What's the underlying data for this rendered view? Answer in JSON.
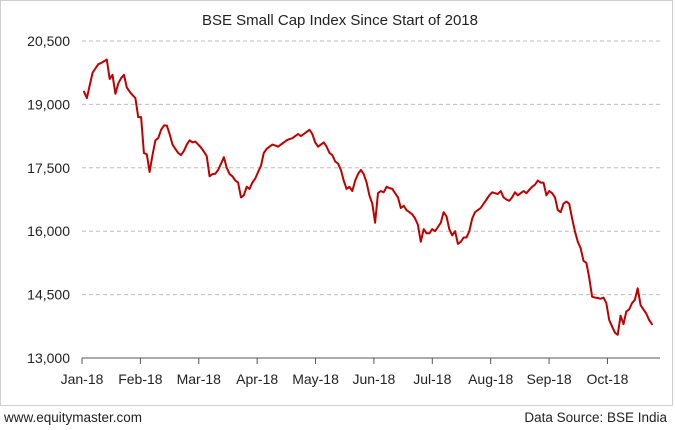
{
  "chart_data": {
    "type": "line",
    "title": "BSE Small Cap Index Since Start of 2018",
    "xlabel": "",
    "ylabel": "",
    "x_tick_labels": [
      "Jan-18",
      "Feb-18",
      "Mar-18",
      "Apr-18",
      "May-18",
      "Jun-18",
      "Jul-18",
      "Aug-18",
      "Sep-18",
      "Oct-18"
    ],
    "y_ticks": [
      13000,
      14500,
      16000,
      17500,
      19000,
      20500
    ],
    "y_tick_labels": [
      "13,000",
      "14,500",
      "16,000",
      "17,500",
      "19,000",
      "20,500"
    ],
    "ylim": [
      13000,
      20500
    ],
    "grid": "horizontal-dashed",
    "series": [
      {
        "color": "#c00000",
        "values": [
          19300,
          19150,
          19450,
          19750,
          19850,
          19950,
          19980,
          20020,
          20060,
          19600,
          19700,
          19250,
          19500,
          19620,
          19700,
          19400,
          19300,
          19220,
          19150,
          18700,
          18700,
          17850,
          17820,
          17400,
          17800,
          18150,
          18200,
          18400,
          18500,
          18500,
          18300,
          18050,
          17950,
          17850,
          17800,
          17900,
          18050,
          18150,
          18100,
          18120,
          18050,
          17980,
          17880,
          17780,
          17300,
          17350,
          17360,
          17450,
          17600,
          17750,
          17500,
          17350,
          17300,
          17200,
          17150,
          16800,
          16850,
          17050,
          17000,
          17150,
          17250,
          17400,
          17550,
          17850,
          17950,
          18000,
          18050,
          18030,
          18000,
          18050,
          18100,
          18150,
          18180,
          18200,
          18250,
          18300,
          18250,
          18300,
          18350,
          18400,
          18300,
          18100,
          18000,
          18050,
          18100,
          18000,
          17850,
          17800,
          17650,
          17600,
          17450,
          17200,
          17000,
          17050,
          16950,
          17200,
          17350,
          17450,
          17350,
          17150,
          16850,
          16650,
          16200,
          16900,
          16950,
          16920,
          17050,
          17020,
          17000,
          16900,
          16800,
          16550,
          16600,
          16500,
          16450,
          16400,
          16300,
          16150,
          15750,
          16050,
          15950,
          15950,
          16050,
          16000,
          16100,
          16200,
          16450,
          16350,
          16050,
          15900,
          16000,
          15700,
          15750,
          15850,
          15850,
          16000,
          16300,
          16450,
          16500,
          16550,
          16650,
          16750,
          16850,
          16920,
          16900,
          16880,
          16950,
          16800,
          16750,
          16720,
          16800,
          16920,
          16850,
          16900,
          16950,
          16900,
          16980,
          17050,
          17100,
          17200,
          17150,
          17150,
          16850,
          16950,
          16900,
          16800,
          16500,
          16450,
          16650,
          16700,
          16650,
          16300,
          16000,
          15750,
          15600,
          15300,
          15250,
          14900,
          14450,
          14430,
          14420,
          14400,
          14430,
          14300,
          13900,
          13750,
          13600,
          13550,
          14000,
          13800,
          14100,
          14150,
          14300,
          14380,
          14650,
          14250,
          14150,
          14050,
          13900,
          13800
        ]
      }
    ]
  },
  "footer": {
    "website": "www.equitymaster.com",
    "source": "Data Source: BSE India"
  }
}
